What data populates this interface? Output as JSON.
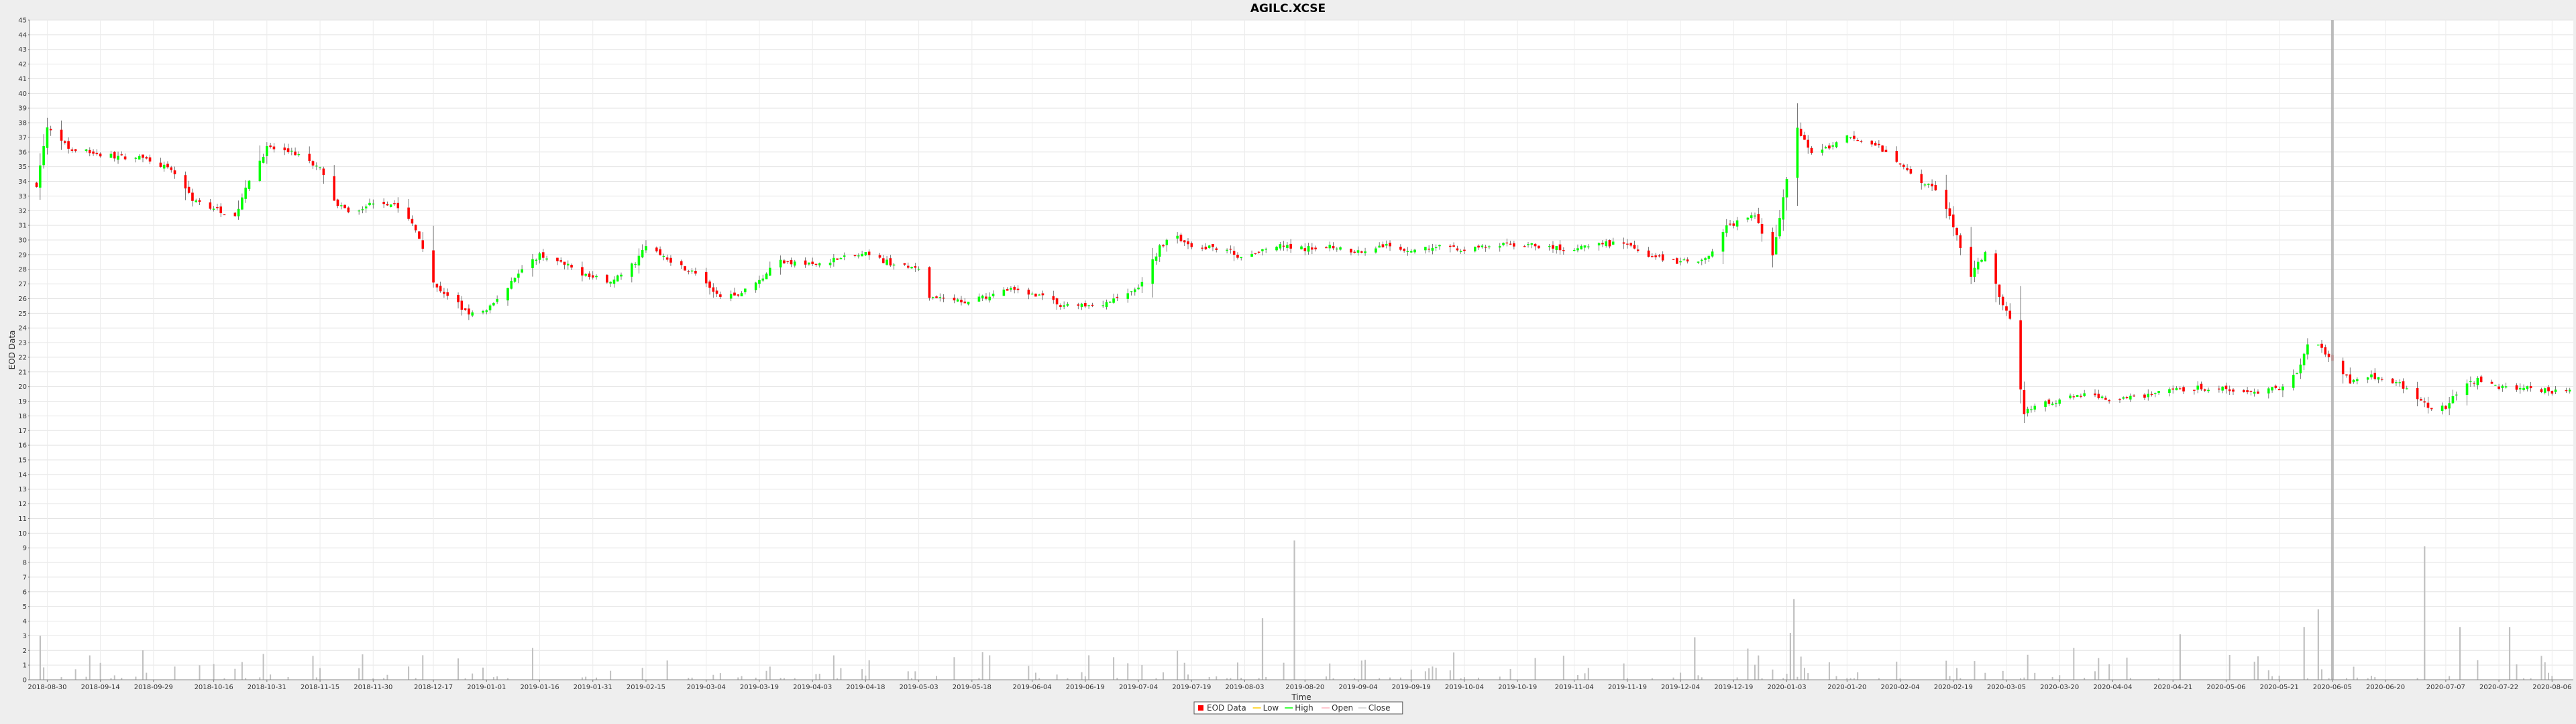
{
  "chart_data": {
    "type": "candlestick",
    "title": "AGILC.XCSE",
    "xlabel": "Time",
    "ylabel": "EOD Data",
    "ylim": [
      0,
      45
    ],
    "yticks": [
      0,
      1,
      2,
      3,
      4,
      5,
      6,
      7,
      8,
      9,
      10,
      11,
      12,
      13,
      14,
      15,
      16,
      17,
      18,
      19,
      20,
      21,
      22,
      23,
      24,
      25,
      26,
      27,
      28,
      29,
      30,
      31,
      32,
      33,
      34,
      35,
      36,
      37,
      38,
      39,
      40,
      41,
      42,
      43,
      44,
      45
    ],
    "xlim": [
      "2018-08-25",
      "2020-08-12"
    ],
    "xticks": [
      "2018-08-30",
      "2018-09-14",
      "2018-09-29",
      "2018-10-16",
      "2018-10-31",
      "2018-11-15",
      "2018-11-30",
      "2018-12-17",
      "2019-01-01",
      "2019-01-16",
      "2019-01-31",
      "2019-02-15",
      "2019-03-04",
      "2019-03-19",
      "2019-04-03",
      "2019-04-18",
      "2019-05-03",
      "2019-05-18",
      "2019-06-04",
      "2019-06-19",
      "2019-07-04",
      "2019-07-19",
      "2019-08-03",
      "2019-08-20",
      "2019-09-04",
      "2019-09-19",
      "2019-10-04",
      "2019-10-19",
      "2019-11-04",
      "2019-11-19",
      "2019-12-04",
      "2019-12-19",
      "2020-01-03",
      "2020-01-20",
      "2020-02-04",
      "2020-02-19",
      "2020-03-05",
      "2020-03-20",
      "2020-04-04",
      "2020-04-21",
      "2020-05-06",
      "2020-05-21",
      "2020-06-05",
      "2020-06-20",
      "2020-07-07",
      "2020-07-22",
      "2020-08-06"
    ],
    "grid": true,
    "legend": {
      "position": "bottom",
      "entries": [
        {
          "label": "EOD Data",
          "color": "#ff0000"
        },
        {
          "label": "Low",
          "color": "#ffcc00"
        },
        {
          "label": "High",
          "color": "#00ff00"
        },
        {
          "label": "Open",
          "color": "#ffb6c1"
        },
        {
          "label": "Close",
          "color": "#d0d0d0"
        }
      ]
    },
    "colors": {
      "up": "#00ff00",
      "down": "#ff0000",
      "volume": "#c0c0c0",
      "crosshair": "#b0b0b0"
    },
    "crosshair_date": "2020-06-05",
    "anchors": [
      [
        "2018-08-27",
        33.8
      ],
      [
        "2018-08-30",
        37.6
      ],
      [
        "2018-09-05",
        36.3
      ],
      [
        "2018-09-14",
        35.8
      ],
      [
        "2018-09-24",
        35.6
      ],
      [
        "2018-09-29",
        35.5
      ],
      [
        "2018-10-06",
        34.3
      ],
      [
        "2018-10-10",
        32.8
      ],
      [
        "2018-10-16",
        32.2
      ],
      [
        "2018-10-22",
        31.6
      ],
      [
        "2018-10-26",
        34.0
      ],
      [
        "2018-10-31",
        36.3
      ],
      [
        "2018-11-08",
        35.9
      ],
      [
        "2018-11-15",
        34.8
      ],
      [
        "2018-11-20",
        32.3
      ],
      [
        "2018-11-25",
        31.8
      ],
      [
        "2018-11-30",
        32.6
      ],
      [
        "2018-12-06",
        32.5
      ],
      [
        "2018-12-12",
        30.8
      ],
      [
        "2018-12-17",
        27.0
      ],
      [
        "2018-12-24",
        25.6
      ],
      [
        "2018-12-27",
        24.9
      ],
      [
        "2019-01-01",
        25.1
      ],
      [
        "2019-01-05",
        26.2
      ],
      [
        "2019-01-10",
        27.8
      ],
      [
        "2019-01-16",
        29.0
      ],
      [
        "2019-01-24",
        28.2
      ],
      [
        "2019-01-31",
        27.4
      ],
      [
        "2019-02-06",
        27.2
      ],
      [
        "2019-02-12",
        28.5
      ],
      [
        "2019-02-15",
        29.6
      ],
      [
        "2019-02-20",
        28.9
      ],
      [
        "2019-03-01",
        27.7
      ],
      [
        "2019-03-06",
        26.4
      ],
      [
        "2019-03-12",
        26.1
      ],
      [
        "2019-03-19",
        27.2
      ],
      [
        "2019-03-24",
        28.6
      ],
      [
        "2019-04-03",
        28.3
      ],
      [
        "2019-04-10",
        28.7
      ],
      [
        "2019-04-18",
        29.0
      ],
      [
        "2019-04-24",
        28.5
      ],
      [
        "2019-05-03",
        27.9
      ],
      [
        "2019-05-06",
        26.0
      ],
      [
        "2019-05-18",
        25.8
      ],
      [
        "2019-05-23",
        26.2
      ],
      [
        "2019-05-28",
        26.6
      ],
      [
        "2019-06-04",
        26.4
      ],
      [
        "2019-06-12",
        25.6
      ],
      [
        "2019-06-19",
        25.5
      ],
      [
        "2019-06-26",
        25.8
      ],
      [
        "2019-07-04",
        26.7
      ],
      [
        "2019-07-10",
        29.5
      ],
      [
        "2019-07-14",
        30.5
      ],
      [
        "2019-07-19",
        29.4
      ],
      [
        "2019-07-28",
        29.5
      ],
      [
        "2019-08-03",
        28.6
      ],
      [
        "2019-08-10",
        29.6
      ],
      [
        "2019-08-20",
        29.4
      ],
      [
        "2019-08-27",
        29.6
      ],
      [
        "2019-09-04",
        29.2
      ],
      [
        "2019-09-11",
        29.6
      ],
      [
        "2019-09-19",
        29.3
      ],
      [
        "2019-09-26",
        29.5
      ],
      [
        "2019-10-04",
        29.3
      ],
      [
        "2019-10-12",
        29.6
      ],
      [
        "2019-10-19",
        29.7
      ],
      [
        "2019-10-24",
        29.6
      ],
      [
        "2019-11-04",
        29.3
      ],
      [
        "2019-11-12",
        29.8
      ],
      [
        "2019-11-19",
        29.6
      ],
      [
        "2019-11-26",
        28.9
      ],
      [
        "2019-12-04",
        28.5
      ],
      [
        "2019-12-12",
        28.8
      ],
      [
        "2019-12-17",
        31.0
      ],
      [
        "2019-12-25",
        31.6
      ],
      [
        "2019-12-30",
        29.0
      ],
      [
        "2020-01-03",
        34.2
      ],
      [
        "2020-01-06",
        37.5
      ],
      [
        "2020-01-10",
        36.0
      ],
      [
        "2020-01-16",
        36.4
      ],
      [
        "2020-01-20",
        37.0
      ],
      [
        "2020-01-28",
        36.5
      ],
      [
        "2020-02-04",
        35.3
      ],
      [
        "2020-02-09",
        34.2
      ],
      [
        "2020-02-14",
        33.5
      ],
      [
        "2020-02-19",
        31.0
      ],
      [
        "2020-02-24",
        27.5
      ],
      [
        "2020-02-28",
        29.2
      ],
      [
        "2020-03-03",
        26.2
      ],
      [
        "2020-03-06",
        24.6
      ],
      [
        "2020-03-10",
        18.3
      ],
      [
        "2020-03-15",
        18.9
      ],
      [
        "2020-03-20",
        19.0
      ],
      [
        "2020-03-27",
        19.5
      ],
      [
        "2020-04-04",
        19.1
      ],
      [
        "2020-04-12",
        19.3
      ],
      [
        "2020-04-21",
        19.7
      ],
      [
        "2020-04-28",
        19.9
      ],
      [
        "2020-05-06",
        19.8
      ],
      [
        "2020-05-14",
        19.6
      ],
      [
        "2020-05-21",
        19.9
      ],
      [
        "2020-05-26",
        21.0
      ],
      [
        "2020-05-30",
        23.5
      ],
      [
        "2020-06-02",
        22.5
      ],
      [
        "2020-06-05",
        21.8
      ],
      [
        "2020-06-10",
        20.3
      ],
      [
        "2020-06-14",
        20.8
      ],
      [
        "2020-06-20",
        20.6
      ],
      [
        "2020-06-26",
        19.9
      ],
      [
        "2020-07-03",
        18.4
      ],
      [
        "2020-07-07",
        18.6
      ],
      [
        "2020-07-12",
        20.3
      ],
      [
        "2020-07-16",
        20.4
      ],
      [
        "2020-07-22",
        20.0
      ],
      [
        "2020-07-30",
        19.9
      ],
      [
        "2020-08-06",
        19.7
      ],
      [
        "2020-08-11",
        19.8
      ]
    ],
    "volume_spikes": [
      [
        "2019-08-17",
        9.5
      ],
      [
        "2019-08-08",
        4.2
      ],
      [
        "2020-01-05",
        5.5
      ],
      [
        "2020-01-04",
        3.2
      ],
      [
        "2020-07-01",
        9.1
      ],
      [
        "2020-06-01",
        4.8
      ],
      [
        "2020-05-28",
        3.6
      ],
      [
        "2020-07-11",
        3.6
      ],
      [
        "2020-07-25",
        3.6
      ],
      [
        "2020-04-23",
        3.1
      ],
      [
        "2018-08-28",
        3.0
      ],
      [
        "2019-12-08",
        2.9
      ]
    ]
  }
}
